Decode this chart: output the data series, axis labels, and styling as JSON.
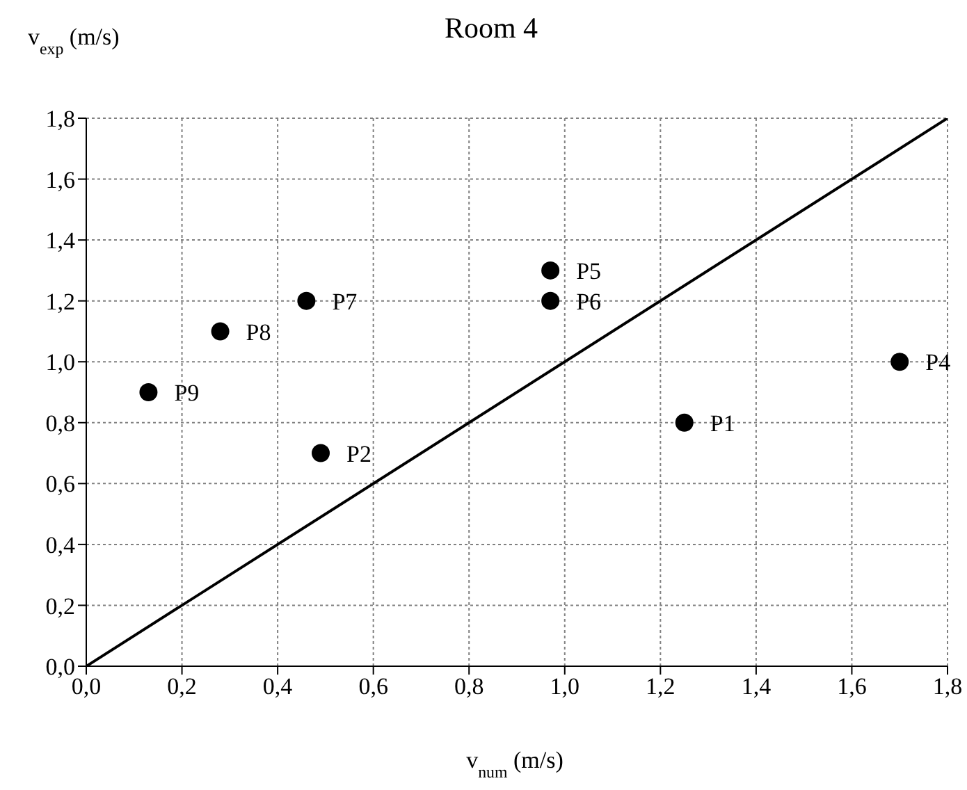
{
  "chart_data": {
    "type": "scatter",
    "title": "Room 4",
    "xlabel": "v$_{num}$ (m/s)",
    "ylabel": "v$_{exp}$ (m/s)",
    "xlim": [
      0,
      1.8
    ],
    "ylim": [
      0,
      1.8
    ],
    "xticks": [
      {
        "value": 0,
        "label": "0,0"
      },
      {
        "value": 0.2,
        "label": "0,2"
      },
      {
        "value": 0.4,
        "label": "0,4"
      },
      {
        "value": 0.6,
        "label": "0,6"
      },
      {
        "value": 0.8,
        "label": "0,8"
      },
      {
        "value": 1,
        "label": "1,0"
      },
      {
        "value": 1.2,
        "label": "1,2"
      },
      {
        "value": 1.4,
        "label": "1,4"
      },
      {
        "value": 1.6,
        "label": "1,6"
      },
      {
        "value": 1.8,
        "label": "1,8"
      }
    ],
    "yticks": [
      {
        "value": 0,
        "label": "0,0"
      },
      {
        "value": 0.2,
        "label": "0,2"
      },
      {
        "value": 0.4,
        "label": "0,4"
      },
      {
        "value": 0.6,
        "label": "0,6"
      },
      {
        "value": 0.8,
        "label": "0,8"
      },
      {
        "value": 1,
        "label": "1,0"
      },
      {
        "value": 1.2,
        "label": "1,2"
      },
      {
        "value": 1.4,
        "label": "1,4"
      },
      {
        "value": 1.6,
        "label": "1,6"
      },
      {
        "value": 1.8,
        "label": "1,8"
      }
    ],
    "grid": true,
    "marker": "circle",
    "legend": false,
    "series": [
      {
        "color": "#000000",
        "x": [
          1.25,
          0.49,
          1.7,
          0.97,
          0.97,
          0.46,
          0.28,
          0.13
        ],
        "values": [
          0.8,
          0.7,
          1.0,
          1.3,
          1.2,
          1.2,
          1.1,
          0.9
        ],
        "value_labels": [
          "P1",
          "P2",
          "P4",
          "P5",
          "P6",
          "P7",
          "P8",
          "P9"
        ]
      },
      {
        "type": "line",
        "marker": "none",
        "color": "#000000",
        "x": [
          0,
          1.8
        ],
        "values": [
          0,
          1.8
        ]
      }
    ]
  }
}
